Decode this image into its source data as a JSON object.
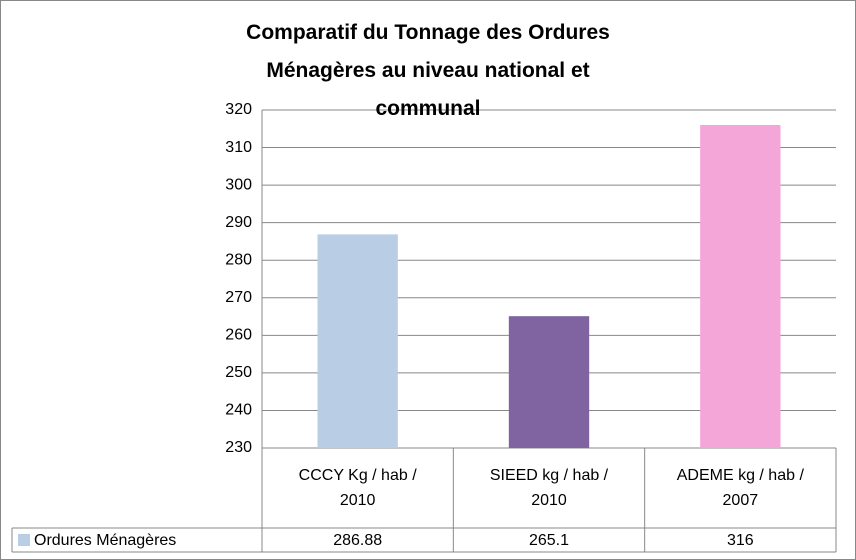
{
  "chart_data": {
    "type": "bar",
    "title": "Comparatif du Tonnage des Ordures Ménagères au niveau national et communal",
    "categories": [
      "CCCY Kg / hab / 2010",
      "SIEED kg / hab / 2010",
      "ADEME kg / hab / 2007"
    ],
    "series": [
      {
        "name": "Ordures Ménagères",
        "color": "#b9cde5",
        "colors": [
          "#b9cde5",
          "#8064a2",
          "#f4a6d8"
        ],
        "values": [
          286.88,
          265.1,
          316
        ]
      }
    ],
    "ylim": [
      230,
      320
    ],
    "yticks": [
      230,
      240,
      250,
      260,
      270,
      280,
      290,
      300,
      310,
      320
    ],
    "grid": true
  }
}
